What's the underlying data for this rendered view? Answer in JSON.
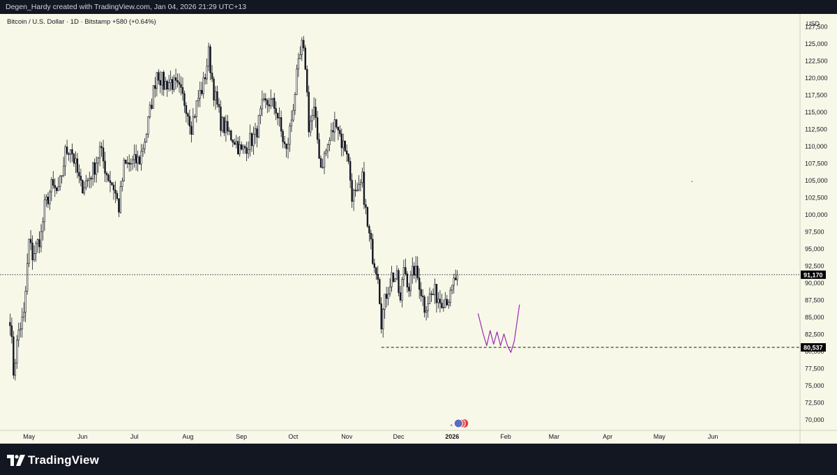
{
  "header": {
    "attribution": "Degen_Hardy created with TradingView.com, Jan 04, 2026 21:29 UTC+13"
  },
  "branding": {
    "name": "TradingView"
  },
  "colors": {
    "background": "#f8f8e8",
    "frame": "#131722",
    "candle_body": "#131722",
    "drawing": "#9c27b0",
    "label_bg": "#000000"
  },
  "chart_data": {
    "type": "candlestick",
    "symbol_info": "Bitcoin / U.S. Dollar · 1D · Bitstamp",
    "change": "+580 (+0.64%)",
    "currency": "USD",
    "ylim": [
      68500,
      128500
    ],
    "y_ticks": [
      "127,500",
      "125,000",
      "122,500",
      "120,000",
      "117,500",
      "115,000",
      "112,500",
      "110,000",
      "107,500",
      "105,000",
      "102,500",
      "100,000",
      "97,500",
      "95,000",
      "92,500",
      "90,000",
      "87,500",
      "85,000",
      "82,500",
      "80,000",
      "77,500",
      "75,000",
      "72,500",
      "70,000"
    ],
    "x_ticks": [
      "May",
      "Jun",
      "Jul",
      "Aug",
      "Sep",
      "Oct",
      "Nov",
      "Dec",
      "2026",
      "Feb",
      "Mar",
      "Apr",
      "May",
      "Jun"
    ],
    "current_price": {
      "value": 91170,
      "label": "91,170"
    },
    "support_level": {
      "value": 80537,
      "label": "80,537"
    },
    "grid": false,
    "price_path": [
      [
        "2025-04-20",
        85000
      ],
      [
        "2025-04-22",
        77000
      ],
      [
        "2025-04-25",
        83000
      ],
      [
        "2025-04-28",
        85000
      ],
      [
        "2025-05-01",
        96000
      ],
      [
        "2025-05-03",
        94000
      ],
      [
        "2025-05-08",
        97000
      ],
      [
        "2025-05-10",
        101000
      ],
      [
        "2025-05-14",
        104000
      ],
      [
        "2025-05-18",
        103000
      ],
      [
        "2025-05-22",
        109000
      ],
      [
        "2025-05-25",
        110000
      ],
      [
        "2025-05-28",
        107000
      ],
      [
        "2025-05-31",
        104000
      ],
      [
        "2025-06-04",
        105000
      ],
      [
        "2025-06-08",
        107000
      ],
      [
        "2025-06-11",
        109500
      ],
      [
        "2025-06-15",
        106000
      ],
      [
        "2025-06-19",
        104000
      ],
      [
        "2025-06-22",
        101000
      ],
      [
        "2025-06-25",
        107000
      ],
      [
        "2025-06-30",
        107500
      ],
      [
        "2025-07-04",
        108000
      ],
      [
        "2025-07-08",
        112000
      ],
      [
        "2025-07-12",
        118000
      ],
      [
        "2025-07-14",
        121000
      ],
      [
        "2025-07-18",
        119000
      ],
      [
        "2025-07-22",
        119500
      ],
      [
        "2025-07-27",
        118000
      ],
      [
        "2025-07-31",
        116000
      ],
      [
        "2025-08-03",
        113000
      ],
      [
        "2025-08-07",
        117000
      ],
      [
        "2025-08-10",
        119000
      ],
      [
        "2025-08-13",
        123500
      ],
      [
        "2025-08-16",
        118000
      ],
      [
        "2025-08-20",
        113500
      ],
      [
        "2025-08-24",
        112000
      ],
      [
        "2025-08-28",
        111000
      ],
      [
        "2025-09-01",
        109000
      ],
      [
        "2025-09-05",
        110500
      ],
      [
        "2025-09-09",
        111500
      ],
      [
        "2025-09-13",
        115500
      ],
      [
        "2025-09-17",
        116500
      ],
      [
        "2025-09-21",
        115500
      ],
      [
        "2025-09-24",
        112000
      ],
      [
        "2025-09-27",
        109000
      ],
      [
        "2025-09-30",
        114000
      ],
      [
        "2025-10-03",
        120000
      ],
      [
        "2025-10-06",
        124500
      ],
      [
        "2025-10-08",
        122000
      ],
      [
        "2025-10-10",
        113000
      ],
      [
        "2025-10-13",
        115000
      ],
      [
        "2025-10-17",
        107000
      ],
      [
        "2025-10-21",
        110000
      ],
      [
        "2025-10-26",
        114000
      ],
      [
        "2025-10-29",
        110500
      ],
      [
        "2025-11-01",
        109500
      ],
      [
        "2025-11-04",
        103000
      ],
      [
        "2025-11-07",
        102500
      ],
      [
        "2025-11-10",
        105000
      ],
      [
        "2025-11-13",
        98000
      ],
      [
        "2025-11-16",
        94000
      ],
      [
        "2025-11-19",
        91500
      ],
      [
        "2025-11-21",
        84500
      ],
      [
        "2025-11-24",
        88500
      ],
      [
        "2025-11-27",
        91000
      ],
      [
        "2025-11-30",
        90500
      ],
      [
        "2025-12-02",
        87000
      ],
      [
        "2025-12-04",
        92500
      ],
      [
        "2025-12-07",
        89500
      ],
      [
        "2025-12-10",
        92000
      ],
      [
        "2025-12-13",
        90000
      ],
      [
        "2025-12-16",
        86500
      ],
      [
        "2025-12-19",
        88000
      ],
      [
        "2025-12-22",
        88500
      ],
      [
        "2025-12-25",
        87500
      ],
      [
        "2025-12-28",
        87800
      ],
      [
        "2025-12-31",
        87800
      ],
      [
        "2026-01-02",
        90000
      ],
      [
        "2026-01-04",
        91170
      ]
    ],
    "drawing_path": [
      [
        "2026-01-16",
        85500
      ],
      [
        "2026-01-19",
        82500
      ],
      [
        "2026-01-21",
        80800
      ],
      [
        "2026-01-23",
        83000
      ],
      [
        "2026-01-25",
        81000
      ],
      [
        "2026-01-27",
        82800
      ],
      [
        "2026-01-29",
        80800
      ],
      [
        "2026-01-31",
        82500
      ],
      [
        "2026-02-02",
        80800
      ],
      [
        "2026-02-04",
        79800
      ],
      [
        "2026-02-06",
        81500
      ],
      [
        "2026-02-09",
        86800
      ]
    ]
  }
}
